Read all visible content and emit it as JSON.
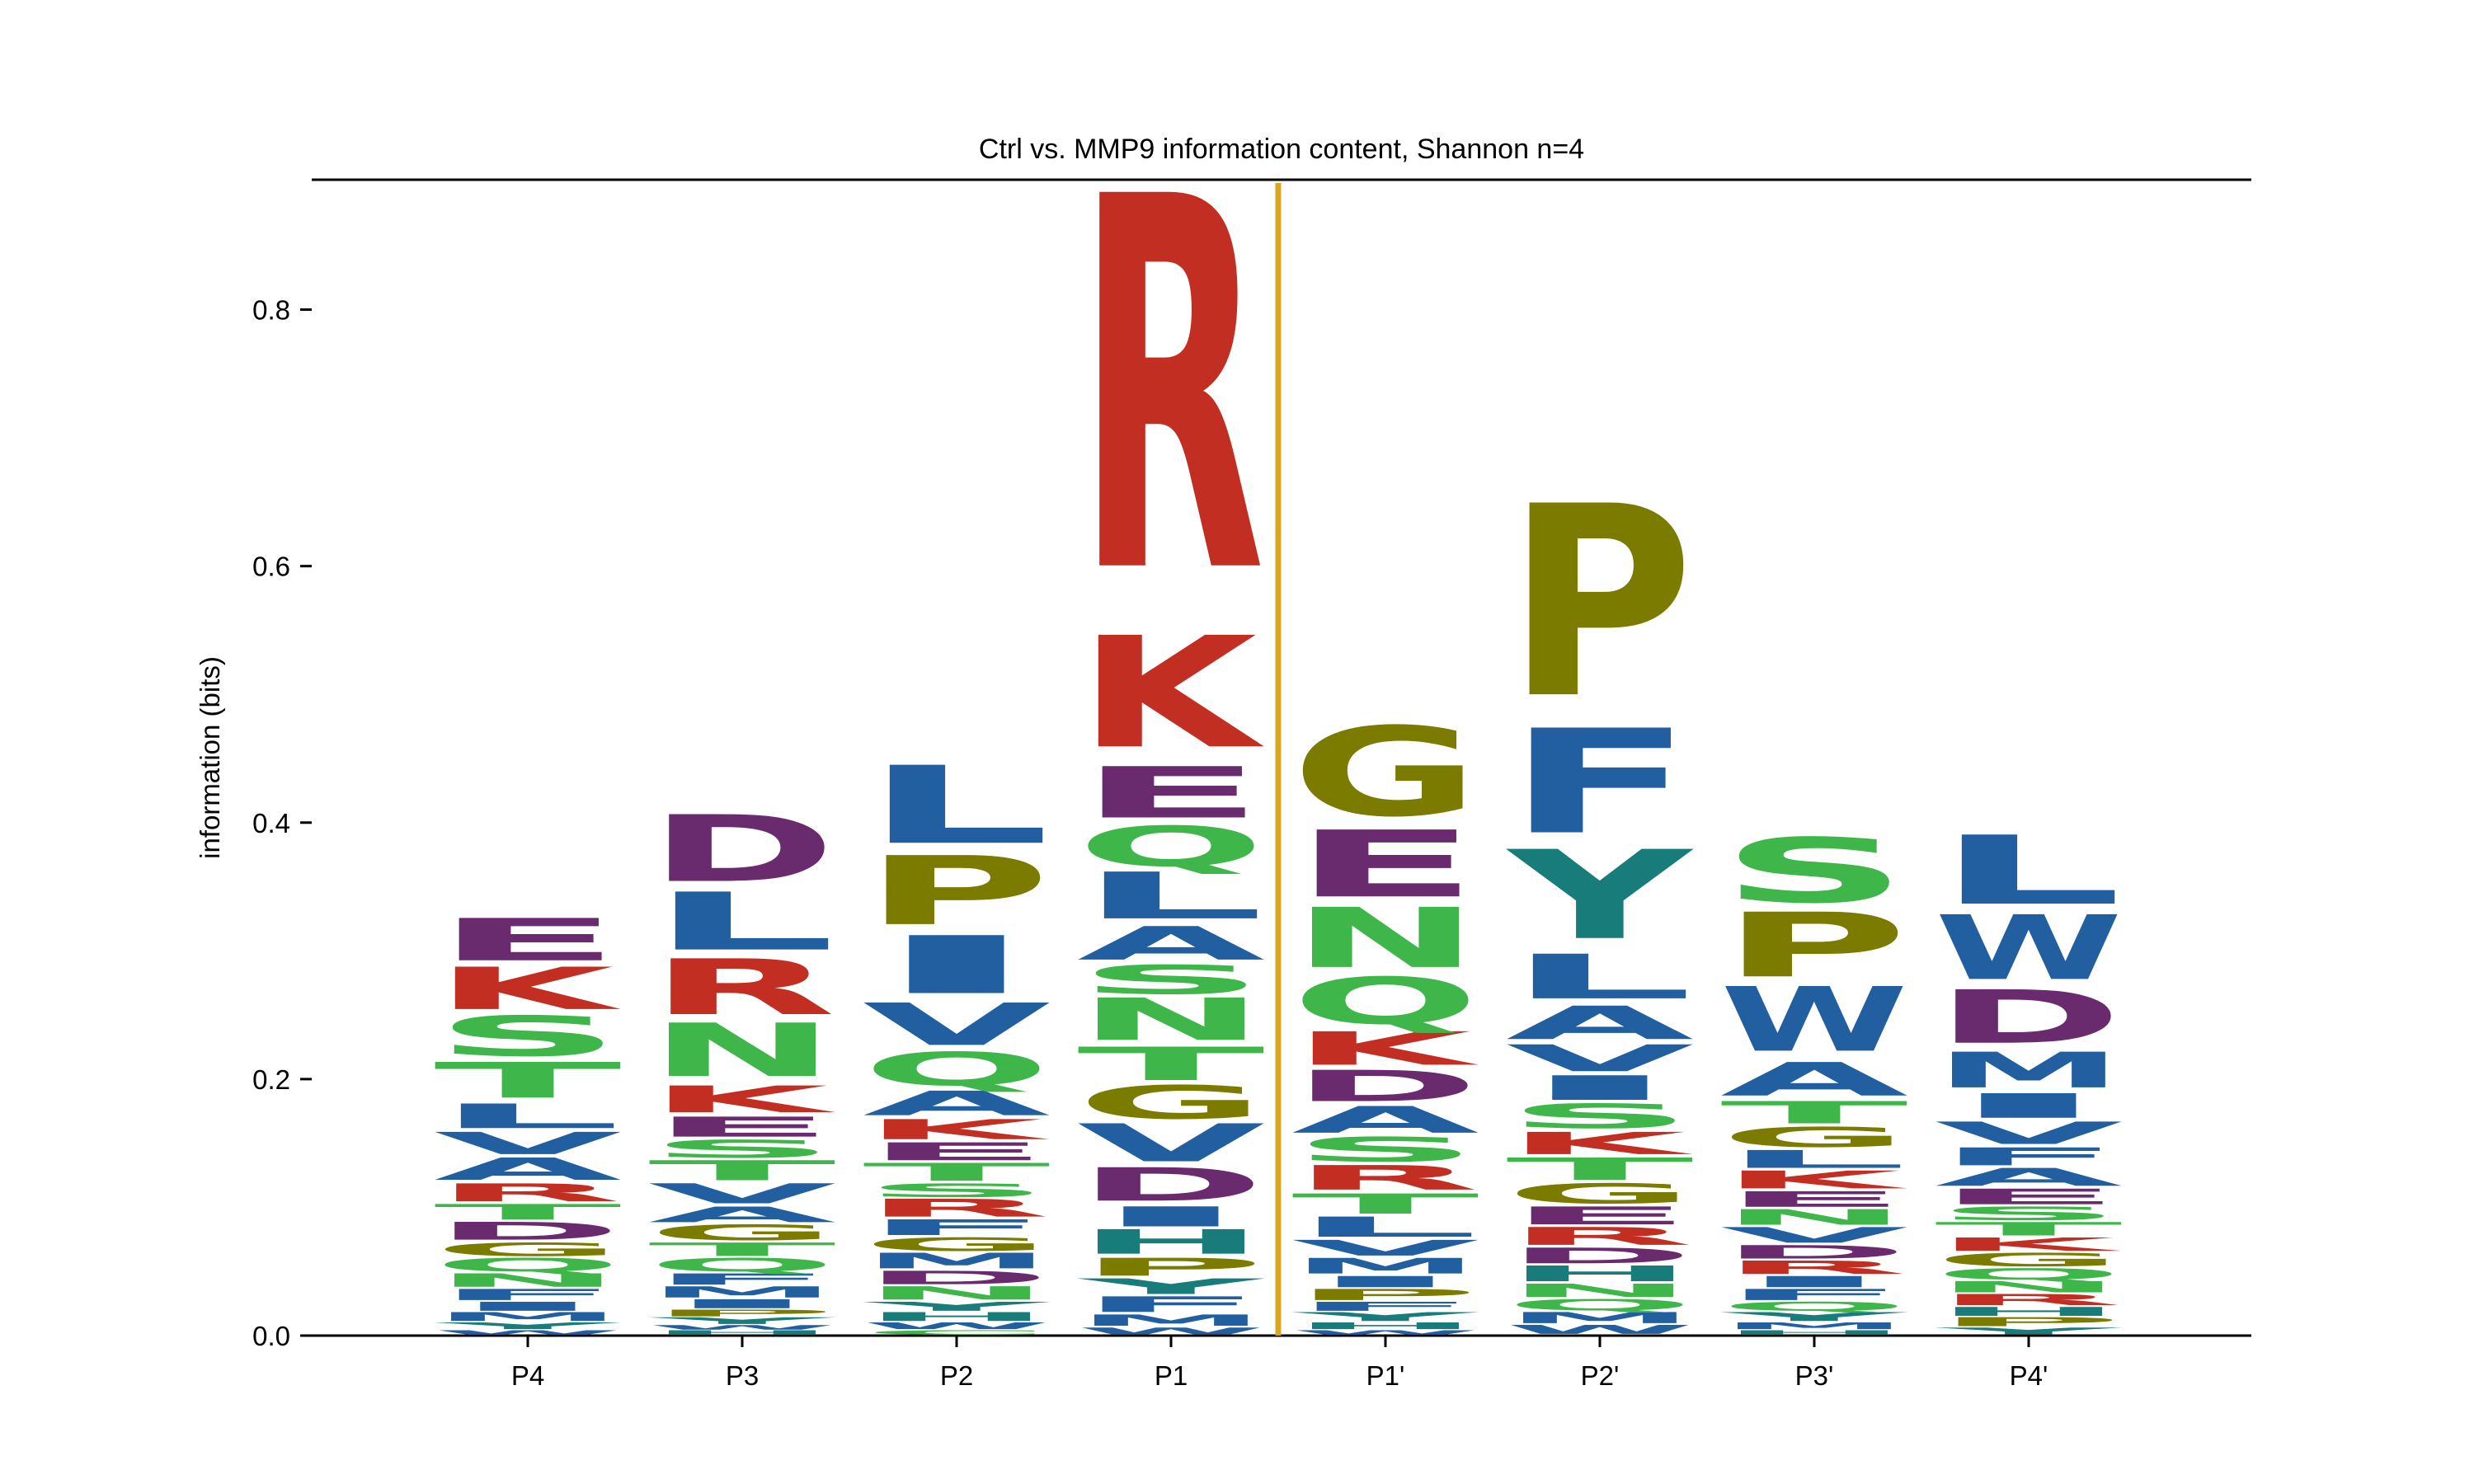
{
  "chart_data": {
    "type": "sequence-logo",
    "title": "Ctrl vs. MMP9 information content, Shannon n=4",
    "ylabel": "information (bits)",
    "xlabel": "",
    "ylim": [
      0,
      0.92
    ],
    "yticks": [
      "0.0",
      "0.2",
      "0.4",
      "0.6",
      "0.8"
    ],
    "ytick_values": [
      0,
      0.2,
      0.4,
      0.6,
      0.8
    ],
    "positions": [
      "P4",
      "P3",
      "P2",
      "P1",
      "P1'",
      "P2'",
      "P3'",
      "P4'"
    ],
    "cleavage_line_after": "P1",
    "cleavage_line_color": "#DAA520",
    "colors": {
      "hydrophobic": "#225FA0",
      "acidic": "#6A2A6E",
      "basic": "#C22F22",
      "polar": "#3FB649",
      "special_gp": "#7B7B00",
      "aromatic_hy": "#187C7A"
    },
    "residue_group": {
      "A": "hydrophobic",
      "V": "hydrophobic",
      "L": "hydrophobic",
      "I": "hydrophobic",
      "M": "hydrophobic",
      "F": "hydrophobic",
      "W": "hydrophobic",
      "D": "acidic",
      "E": "acidic",
      "K": "basic",
      "R": "basic",
      "S": "polar",
      "T": "polar",
      "N": "polar",
      "Q": "polar",
      "C": "polar",
      "G": "special_gp",
      "P": "special_gp",
      "H": "aromatic_hy",
      "Y": "aromatic_hy"
    },
    "stacks": [
      {
        "position": "P4",
        "letters": [
          {
            "aa": "E",
            "height": 0.038
          },
          {
            "aa": "K",
            "height": 0.038
          },
          {
            "aa": "S",
            "height": 0.036
          },
          {
            "aa": "T",
            "height": 0.032
          },
          {
            "aa": "L",
            "height": 0.022
          },
          {
            "aa": "V",
            "height": 0.02
          },
          {
            "aa": "A",
            "height": 0.02
          },
          {
            "aa": "R",
            "height": 0.016
          },
          {
            "aa": "T",
            "height": 0.014
          },
          {
            "aa": "D",
            "height": 0.016
          },
          {
            "aa": "G",
            "height": 0.012
          },
          {
            "aa": "Q",
            "height": 0.012
          },
          {
            "aa": "N",
            "height": 0.012
          },
          {
            "aa": "F",
            "height": 0.01
          },
          {
            "aa": "I",
            "height": 0.008
          },
          {
            "aa": "M",
            "height": 0.008
          },
          {
            "aa": "Y",
            "height": 0.006
          },
          {
            "aa": "W",
            "height": 0.004
          }
        ]
      },
      {
        "position": "P3",
        "letters": [
          {
            "aa": "D",
            "height": 0.06
          },
          {
            "aa": "L",
            "height": 0.052
          },
          {
            "aa": "R",
            "height": 0.05
          },
          {
            "aa": "N",
            "height": 0.048
          },
          {
            "aa": "K",
            "height": 0.024
          },
          {
            "aa": "E",
            "height": 0.018
          },
          {
            "aa": "S",
            "height": 0.016
          },
          {
            "aa": "T",
            "height": 0.018
          },
          {
            "aa": "V",
            "height": 0.018
          },
          {
            "aa": "A",
            "height": 0.014
          },
          {
            "aa": "G",
            "height": 0.014
          },
          {
            "aa": "T",
            "height": 0.012
          },
          {
            "aa": "Q",
            "height": 0.012
          },
          {
            "aa": "F",
            "height": 0.01
          },
          {
            "aa": "M",
            "height": 0.01
          },
          {
            "aa": "I",
            "height": 0.008
          },
          {
            "aa": "P",
            "height": 0.006
          },
          {
            "aa": "Y",
            "height": 0.006
          },
          {
            "aa": "W",
            "height": 0.004
          },
          {
            "aa": "H",
            "height": 0.004
          }
        ]
      },
      {
        "position": "P2",
        "letters": [
          {
            "aa": "L",
            "height": 0.07
          },
          {
            "aa": "P",
            "height": 0.062
          },
          {
            "aa": "I",
            "height": 0.052
          },
          {
            "aa": "V",
            "height": 0.038
          },
          {
            "aa": "Q",
            "height": 0.03
          },
          {
            "aa": "A",
            "height": 0.022
          },
          {
            "aa": "K",
            "height": 0.018
          },
          {
            "aa": "E",
            "height": 0.016
          },
          {
            "aa": "T",
            "height": 0.016
          },
          {
            "aa": "S",
            "height": 0.012
          },
          {
            "aa": "R",
            "height": 0.016
          },
          {
            "aa": "F",
            "height": 0.014
          },
          {
            "aa": "G",
            "height": 0.012
          },
          {
            "aa": "M",
            "height": 0.014
          },
          {
            "aa": "D",
            "height": 0.012
          },
          {
            "aa": "N",
            "height": 0.012
          },
          {
            "aa": "Y",
            "height": 0.008
          },
          {
            "aa": "H",
            "height": 0.008
          },
          {
            "aa": "W",
            "height": 0.006
          },
          {
            "aa": "C",
            "height": 0.004
          }
        ]
      },
      {
        "position": "P1",
        "letters": [
          {
            "aa": "R",
            "height": 0.335
          },
          {
            "aa": "K",
            "height": 0.1
          },
          {
            "aa": "E",
            "height": 0.046
          },
          {
            "aa": "Q",
            "height": 0.036
          },
          {
            "aa": "L",
            "height": 0.042
          },
          {
            "aa": "A",
            "height": 0.03
          },
          {
            "aa": "S",
            "height": 0.026
          },
          {
            "aa": "N",
            "height": 0.038
          },
          {
            "aa": "T",
            "height": 0.03
          },
          {
            "aa": "G",
            "height": 0.03
          },
          {
            "aa": "V",
            "height": 0.034
          },
          {
            "aa": "D",
            "height": 0.03
          },
          {
            "aa": "I",
            "height": 0.018
          },
          {
            "aa": "H",
            "height": 0.022
          },
          {
            "aa": "P",
            "height": 0.016
          },
          {
            "aa": "Y",
            "height": 0.014
          },
          {
            "aa": "F",
            "height": 0.014
          },
          {
            "aa": "M",
            "height": 0.01
          },
          {
            "aa": "W",
            "height": 0.006
          }
        ]
      },
      {
        "position": "P1'",
        "letters": [
          {
            "aa": "G",
            "height": 0.08
          },
          {
            "aa": "E",
            "height": 0.06
          },
          {
            "aa": "N",
            "height": 0.054
          },
          {
            "aa": "Q",
            "height": 0.042
          },
          {
            "aa": "K",
            "height": 0.03
          },
          {
            "aa": "D",
            "height": 0.028
          },
          {
            "aa": "A",
            "height": 0.024
          },
          {
            "aa": "S",
            "height": 0.022
          },
          {
            "aa": "R",
            "height": 0.022
          },
          {
            "aa": "T",
            "height": 0.018
          },
          {
            "aa": "L",
            "height": 0.018
          },
          {
            "aa": "V",
            "height": 0.014
          },
          {
            "aa": "M",
            "height": 0.014
          },
          {
            "aa": "I",
            "height": 0.01
          },
          {
            "aa": "P",
            "height": 0.01
          },
          {
            "aa": "F",
            "height": 0.008
          },
          {
            "aa": "Y",
            "height": 0.008
          },
          {
            "aa": "H",
            "height": 0.006
          },
          {
            "aa": "W",
            "height": 0.004
          }
        ]
      },
      {
        "position": "P2'",
        "letters": [
          {
            "aa": "P",
            "height": 0.172
          },
          {
            "aa": "F",
            "height": 0.094
          },
          {
            "aa": "Y",
            "height": 0.08
          },
          {
            "aa": "L",
            "height": 0.04
          },
          {
            "aa": "A",
            "height": 0.03
          },
          {
            "aa": "V",
            "height": 0.024
          },
          {
            "aa": "I",
            "height": 0.022
          },
          {
            "aa": "S",
            "height": 0.022
          },
          {
            "aa": "K",
            "height": 0.02
          },
          {
            "aa": "T",
            "height": 0.02
          },
          {
            "aa": "G",
            "height": 0.018
          },
          {
            "aa": "E",
            "height": 0.016
          },
          {
            "aa": "R",
            "height": 0.016
          },
          {
            "aa": "D",
            "height": 0.014
          },
          {
            "aa": "H",
            "height": 0.014
          },
          {
            "aa": "N",
            "height": 0.012
          },
          {
            "aa": "Q",
            "height": 0.01
          },
          {
            "aa": "M",
            "height": 0.01
          },
          {
            "aa": "W",
            "height": 0.008
          }
        ]
      },
      {
        "position": "P3'",
        "letters": [
          {
            "aa": "S",
            "height": 0.058
          },
          {
            "aa": "P",
            "height": 0.058
          },
          {
            "aa": "W",
            "height": 0.058
          },
          {
            "aa": "A",
            "height": 0.03
          },
          {
            "aa": "T",
            "height": 0.02
          },
          {
            "aa": "G",
            "height": 0.018
          },
          {
            "aa": "L",
            "height": 0.016
          },
          {
            "aa": "K",
            "height": 0.016
          },
          {
            "aa": "E",
            "height": 0.014
          },
          {
            "aa": "N",
            "height": 0.014
          },
          {
            "aa": "V",
            "height": 0.014
          },
          {
            "aa": "D",
            "height": 0.012
          },
          {
            "aa": "R",
            "height": 0.012
          },
          {
            "aa": "I",
            "height": 0.01
          },
          {
            "aa": "F",
            "height": 0.01
          },
          {
            "aa": "Q",
            "height": 0.008
          },
          {
            "aa": "Y",
            "height": 0.008
          },
          {
            "aa": "M",
            "height": 0.006
          },
          {
            "aa": "H",
            "height": 0.004
          }
        ]
      },
      {
        "position": "P4'",
        "letters": [
          {
            "aa": "L",
            "height": 0.062
          },
          {
            "aa": "W",
            "height": 0.058
          },
          {
            "aa": "D",
            "height": 0.048
          },
          {
            "aa": "M",
            "height": 0.032
          },
          {
            "aa": "I",
            "height": 0.022
          },
          {
            "aa": "V",
            "height": 0.02
          },
          {
            "aa": "F",
            "height": 0.016
          },
          {
            "aa": "A",
            "height": 0.016
          },
          {
            "aa": "E",
            "height": 0.014
          },
          {
            "aa": "S",
            "height": 0.012
          },
          {
            "aa": "T",
            "height": 0.012
          },
          {
            "aa": "K",
            "height": 0.012
          },
          {
            "aa": "G",
            "height": 0.012
          },
          {
            "aa": "Q",
            "height": 0.01
          },
          {
            "aa": "N",
            "height": 0.01
          },
          {
            "aa": "R",
            "height": 0.01
          },
          {
            "aa": "H",
            "height": 0.008
          },
          {
            "aa": "P",
            "height": 0.008
          },
          {
            "aa": "Y",
            "height": 0.006
          }
        ]
      }
    ]
  }
}
